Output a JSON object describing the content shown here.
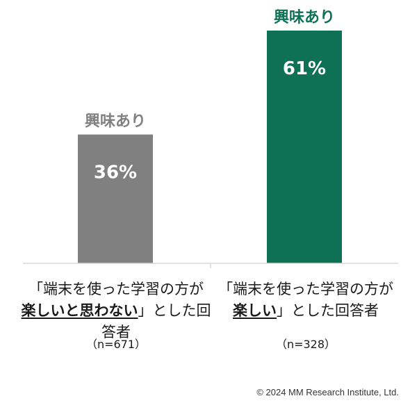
{
  "chart_data": {
    "type": "bar",
    "categories": [
      {
        "line1": "「端末を使った学習の方が",
        "emphasis": "楽しいと思わない",
        "tail": "」とした回答者",
        "n": "（n=671）"
      },
      {
        "line1": "「端末を使った学習の方が",
        "emphasis": "楽しい",
        "tail": "」とした回答者",
        "n": "（n=328）"
      }
    ],
    "series": [
      {
        "values": [
          36,
          61
        ],
        "value_labels": [
          "36%",
          "61%"
        ],
        "top_labels": [
          "興味あり",
          "興味あり"
        ]
      }
    ],
    "colors": [
      "#808080",
      "#0e7155"
    ],
    "ylim": [
      0,
      100
    ],
    "grid": false
  },
  "footer": {
    "copyright": "© 2024 MM Research Institute, Ltd."
  }
}
